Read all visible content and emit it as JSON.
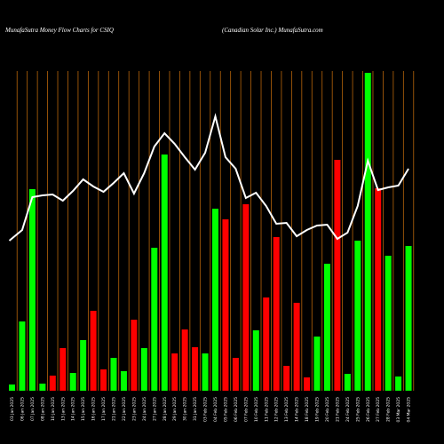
{
  "chart_data": {
    "type": "bar",
    "title": "MunafaSutra  Money Flow  Charts for CSIQ",
    "subtitle": "(Canadian  Solar Inc.) MunafaSutra.com",
    "categories": [
      "03 Jan 2025",
      "06 Jan 2025",
      "07 Jan 2025",
      "08 Jan 2025",
      "10 Jan 2025",
      "13 Jan 2025",
      "14 Jan 2025",
      "15 Jan 2025",
      "16 Jan 2025",
      "17 Jan 2025",
      "21 Jan 2025",
      "22 Jan 2025",
      "23 Jan 2025",
      "24 Jan 2025",
      "27 Jan 2025",
      "28 Jan 2025",
      "29 Jan 2025",
      "30 Jan 2025",
      "31 Jan 2025",
      "03 Feb 2025",
      "04 Feb 2025",
      "05 Feb 2025",
      "06 Feb 2025",
      "07 Feb 2025",
      "10 Feb 2025",
      "11 Feb 2025",
      "12 Feb 2025",
      "13 Feb 2025",
      "14 Feb 2025",
      "18 Feb 2025",
      "19 Feb 2025",
      "20 Feb 2025",
      "21 Feb 2025",
      "24 Feb 2025",
      "25 Feb 2025",
      "26 Feb 2025",
      "27 Feb 2025",
      "28 Feb 2025",
      "03 Mar 2025",
      "04 Mar 2025"
    ],
    "series": [
      {
        "name": "Money Flow",
        "values": [
          7,
          78,
          227,
          8,
          17,
          48,
          20,
          57,
          90,
          24,
          37,
          22,
          80,
          48,
          161,
          266,
          42,
          69,
          49,
          42,
          205,
          193,
          37,
          210,
          68,
          105,
          173,
          28,
          99,
          15,
          61,
          143,
          260,
          19,
          169,
          358,
          228,
          152,
          16,
          163
        ],
        "colors": [
          "#00ff00",
          "#00ff00",
          "#00ff00",
          "#00ff00",
          "#ff0000",
          "#ff0000",
          "#00ff00",
          "#00ff00",
          "#ff0000",
          "#ff0000",
          "#00ff00",
          "#00ff00",
          "#ff0000",
          "#00ff00",
          "#00ff00",
          "#00ff00",
          "#ff0000",
          "#ff0000",
          "#ff0000",
          "#00ff00",
          "#00ff00",
          "#ff0000",
          "#ff0000",
          "#ff0000",
          "#00ff00",
          "#ff0000",
          "#ff0000",
          "#ff0000",
          "#ff0000",
          "#ff0000",
          "#00ff00",
          "#00ff00",
          "#ff0000",
          "#00ff00",
          "#00ff00",
          "#00ff00",
          "#ff0000",
          "#00ff00",
          "#00ff00",
          "#00ff00"
        ]
      },
      {
        "name": "Price",
        "type": "line",
        "color": "#ffffff",
        "axis": "y2",
        "values": [
          169,
          181,
          218,
          220,
          221,
          214,
          225,
          238,
          230,
          224,
          234,
          245,
          222,
          245,
          275,
          290,
          278,
          263,
          249,
          268,
          309,
          263,
          250,
          217,
          223,
          208,
          188,
          189,
          174,
          181,
          186,
          187,
          171,
          178,
          208,
          259,
          226,
          229,
          231,
          250
        ]
      }
    ],
    "ylim": [
      0,
      360
    ],
    "y2lim": [
      0,
      360
    ]
  }
}
